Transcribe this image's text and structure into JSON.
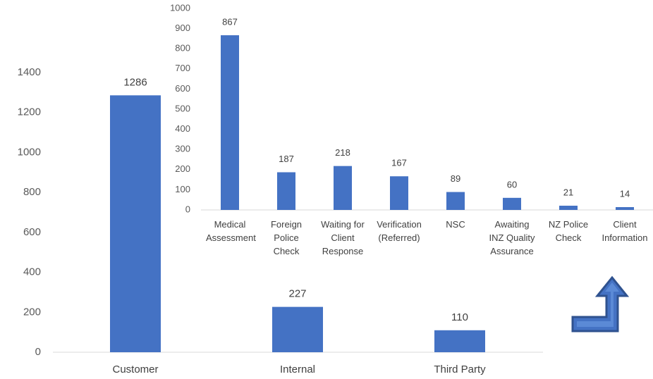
{
  "chart_data": [
    {
      "type": "bar",
      "categories": [
        "Customer",
        "Internal",
        "Third Party"
      ],
      "values": [
        1286,
        227,
        110
      ],
      "color": "#4472c4",
      "ylim": [
        0,
        1400
      ],
      "yticks": [
        0,
        200,
        400,
        600,
        800,
        1000,
        1200,
        1400
      ],
      "grid": false
    },
    {
      "type": "bar",
      "categories": [
        "Medical Assessment",
        "Foreign Police Check",
        "Waiting for Client Response",
        "Verification (Referred)",
        "NSC",
        "Awaiting INZ Quality Assurance",
        "NZ Police Check",
        "Client Information"
      ],
      "values": [
        867,
        187,
        218,
        167,
        89,
        60,
        21,
        14
      ],
      "color": "#4472c4",
      "ylim": [
        0,
        1000
      ],
      "yticks": [
        0,
        100,
        200,
        300,
        400,
        500,
        600,
        700,
        800,
        900,
        1000
      ],
      "grid": false
    }
  ]
}
